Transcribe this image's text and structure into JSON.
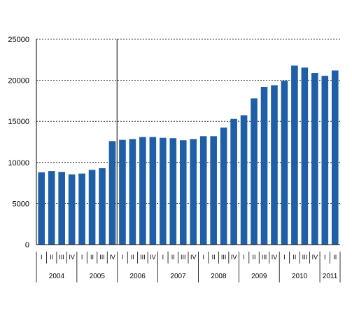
{
  "chart_data": {
    "type": "bar",
    "bar_color": "#1f5fa8",
    "grid": "dashed horizontal",
    "ylim": [
      0,
      25000
    ],
    "yticks": [
      0,
      5000,
      10000,
      15000,
      20000,
      25000
    ],
    "ytick_labels": [
      "0",
      "5000",
      "10000",
      "15000",
      "20000",
      "25000"
    ],
    "categories": [
      "I",
      "II",
      "III",
      "IV",
      "I",
      "II",
      "III",
      "IV",
      "I",
      "II",
      "III",
      "IV",
      "I",
      "II",
      "III",
      "IV",
      "I",
      "II",
      "III",
      "IV",
      "I",
      "II",
      "III",
      "IV",
      "I",
      "II",
      "III",
      "IV",
      "I",
      "II"
    ],
    "values": [
      8800,
      8950,
      8850,
      8550,
      8650,
      9100,
      9300,
      12600,
      12750,
      12850,
      13100,
      13100,
      13000,
      12950,
      12700,
      12850,
      13200,
      13200,
      14250,
      15300,
      15750,
      17800,
      19200,
      19400,
      19950,
      21800,
      21550,
      20900,
      20550,
      21200
    ],
    "years": [
      {
        "label": "2004",
        "start": 0,
        "count": 4
      },
      {
        "label": "2005",
        "start": 4,
        "count": 4
      },
      {
        "label": "2006",
        "start": 8,
        "count": 4
      },
      {
        "label": "2007",
        "start": 12,
        "count": 4
      },
      {
        "label": "2008",
        "start": 16,
        "count": 4
      },
      {
        "label": "2009",
        "start": 20,
        "count": 4
      },
      {
        "label": "2010",
        "start": 24,
        "count": 4
      },
      {
        "label": "2011",
        "start": 28,
        "count": 2
      }
    ],
    "vertical_marker_after_index": 7
  }
}
